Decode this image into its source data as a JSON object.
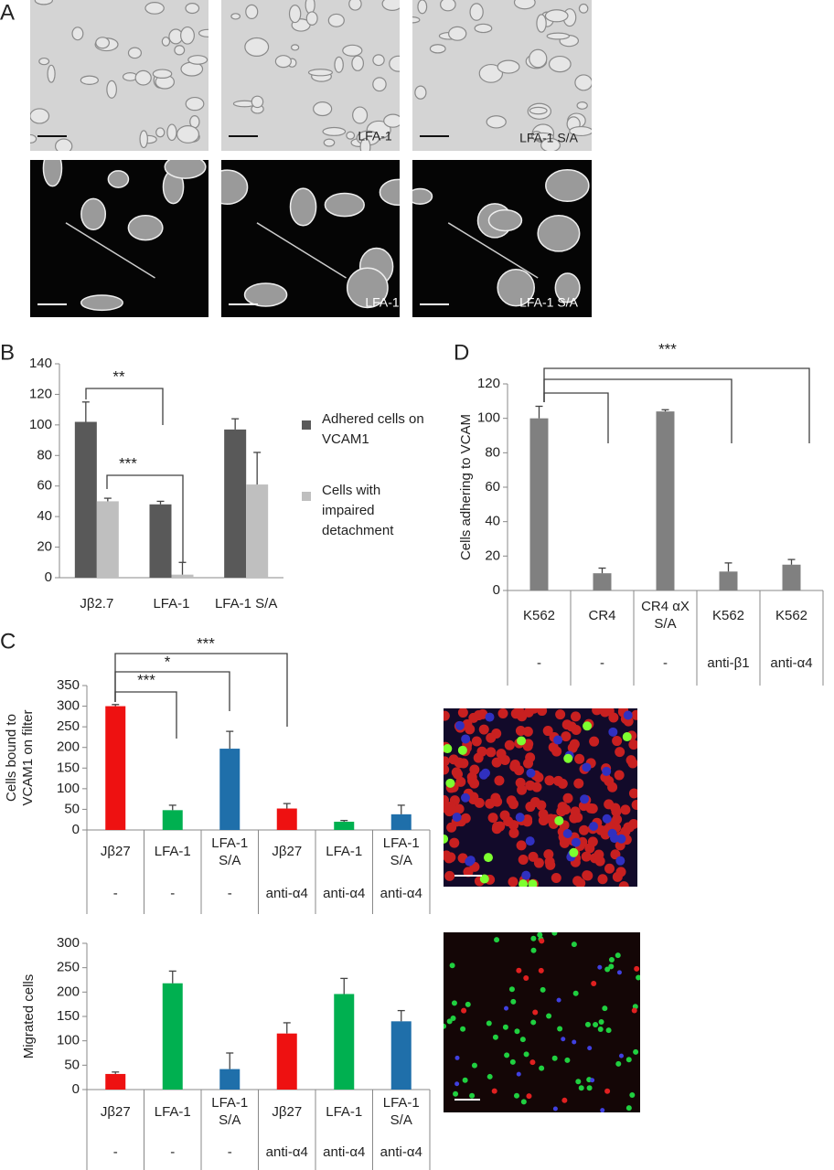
{
  "panel_labels": [
    "A",
    "B",
    "C",
    "D"
  ],
  "image_labels": [
    "LFA-1",
    "LFA-1 S/A",
    "LFA-1",
    "LFA-1 S/A"
  ],
  "chart_data": [
    {
      "type": "bar",
      "categories": [
        "Jβ2.7",
        "LFA-1",
        "LFA-1 S/A"
      ],
      "series": [
        {
          "name": "Adhered cells on VCAM1",
          "color": "#595959",
          "values": [
            102,
            48,
            97
          ],
          "errors": [
            13,
            2,
            7
          ]
        },
        {
          "name": "Cells with impaired detachment",
          "color": "#bfbfbf",
          "values": [
            50,
            2,
            61
          ],
          "errors": [
            2,
            8,
            21
          ]
        }
      ],
      "ylim": [
        0,
        140
      ],
      "yticks": [
        0,
        20,
        40,
        60,
        80,
        100,
        120,
        140
      ],
      "legend": "right",
      "annotations": [
        "**",
        "***"
      ]
    },
    {
      "type": "bar",
      "categories": [
        "K562",
        "CR4",
        "CR4 αX S/A",
        "K562",
        "K562"
      ],
      "treatments": [
        "-",
        "-",
        "-",
        "anti-β1",
        "anti-α4"
      ],
      "values": [
        100,
        10,
        104,
        11,
        15
      ],
      "errors": [
        7,
        3,
        1,
        5,
        3
      ],
      "color": "#808080",
      "y_label": "Cells adhering to VCAM",
      "ylim": [
        0,
        120
      ],
      "yticks": [
        0,
        20,
        40,
        60,
        80,
        100,
        120
      ],
      "annotations": [
        "***"
      ]
    },
    {
      "type": "bar",
      "categories": [
        "Jβ27",
        "LFA-1",
        "LFA-1 S/A",
        "Jβ27",
        "LFA-1",
        "LFA-1 S/A"
      ],
      "treatments": [
        "-",
        "-",
        "-",
        "anti-α4",
        "anti-α4",
        "anti-α4"
      ],
      "values": [
        300,
        48,
        197,
        52,
        20,
        38
      ],
      "errors": [
        4,
        12,
        42,
        12,
        3,
        22
      ],
      "colors": [
        "#ee1111",
        "#00b050",
        "#1f6faa",
        "#ee1111",
        "#00b050",
        "#1f6faa"
      ],
      "y_label": "Cells bound to VCAM1 on filter",
      "ylim": [
        0,
        350
      ],
      "yticks": [
        0,
        50,
        100,
        150,
        200,
        250,
        300,
        350
      ],
      "annotations": [
        "***",
        "*",
        "***"
      ]
    },
    {
      "type": "bar",
      "categories": [
        "Jβ27",
        "LFA-1",
        "LFA-1 S/A",
        "Jβ27",
        "LFA-1",
        "LFA-1 S/A"
      ],
      "treatments": [
        "-",
        "-",
        "-",
        "anti-α4",
        "anti-α4",
        "anti-α4"
      ],
      "values": [
        32,
        218,
        42,
        115,
        196,
        140
      ],
      "errors": [
        4,
        25,
        33,
        22,
        32,
        22
      ],
      "colors": [
        "#ee1111",
        "#00b050",
        "#1f6faa",
        "#ee1111",
        "#00b050",
        "#1f6faa"
      ],
      "y_label": "Migrated cells",
      "ylim": [
        0,
        300
      ],
      "yticks": [
        0,
        50,
        100,
        150,
        200,
        250,
        300
      ]
    }
  ]
}
